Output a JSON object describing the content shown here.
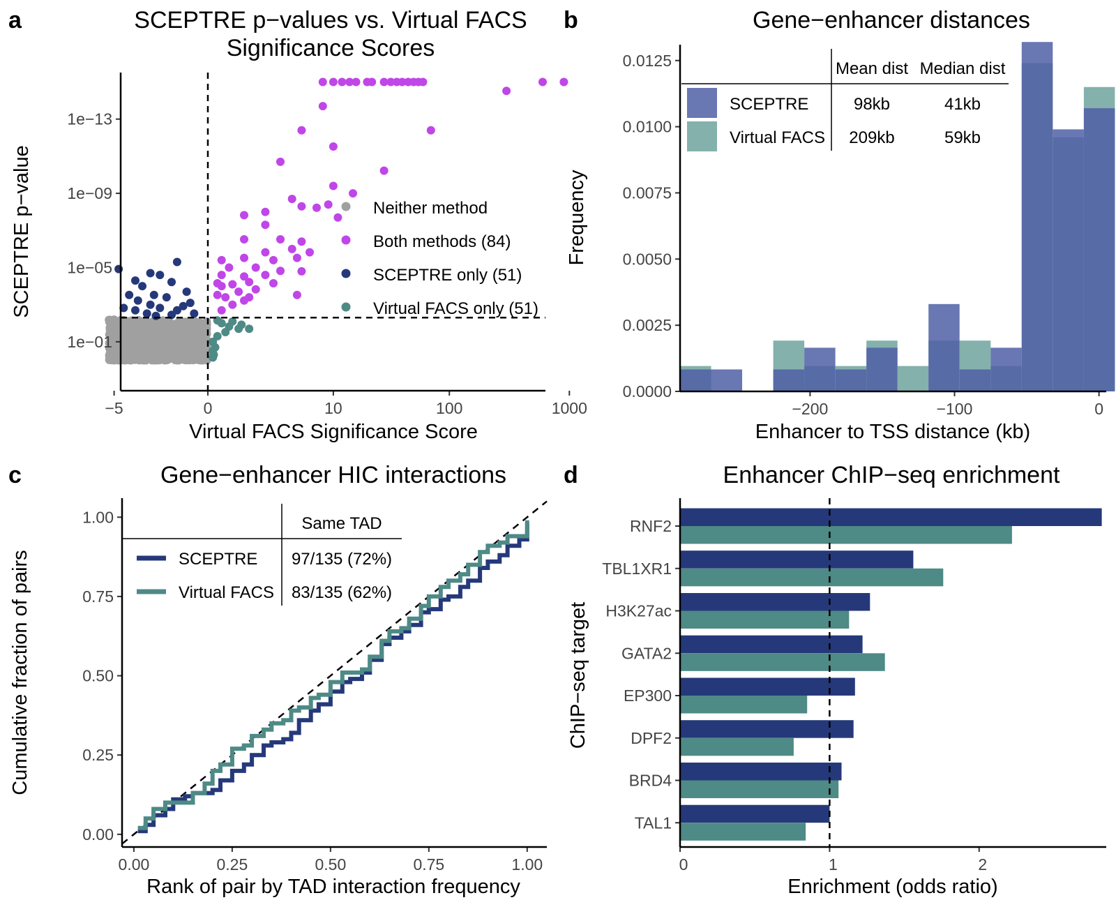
{
  "chart_data": [
    {
      "panel": "a",
      "type": "scatter",
      "title_lines": [
        "SCEPTRE p−values vs. Virtual FACS",
        "Significance Scores"
      ],
      "xlabel": "Virtual FACS Significance Score",
      "ylabel": "SCEPTRE p−value",
      "x_scale": "pseudo-log10 (signed)",
      "y_scale": "-log10",
      "x_ticks": [
        -5,
        0,
        10,
        100,
        1000
      ],
      "x_tick_labels": [
        "−5",
        "0",
        "10",
        "100",
        "1000"
      ],
      "y_ticks": [
        1e-13,
        1e-09,
        1e-05,
        0.1
      ],
      "y_tick_labels": [
        "1e−13",
        "1e−09",
        "1e−05",
        "1e−01"
      ],
      "threshold_x": 0,
      "threshold_p": 0.005,
      "legend": [
        {
          "label": "Neither method",
          "color": "#a0a0a0"
        },
        {
          "label": "Both methods (84)",
          "color": "#c046e8"
        },
        {
          "label": "SCEPTRE only (51)",
          "color": "#25397a"
        },
        {
          "label": "Virtual FACS only (51)",
          "color": "#4e8a86"
        }
      ],
      "series": [
        {
          "name": "Both methods (84)",
          "color": "#c046e8",
          "points": [
            [
              8,
              1e-15
            ],
            [
              10,
              1e-15
            ],
            [
              12,
              1e-15
            ],
            [
              14,
              1e-15
            ],
            [
              16,
              1e-15
            ],
            [
              20,
              1e-15
            ],
            [
              22,
              1e-15
            ],
            [
              28,
              1e-15
            ],
            [
              32,
              1e-15
            ],
            [
              36,
              1e-15
            ],
            [
              40,
              1e-15
            ],
            [
              45,
              1e-15
            ],
            [
              50,
              1e-15
            ],
            [
              55,
              1e-15
            ],
            [
              60,
              1e-15
            ],
            [
              300,
              3e-15
            ],
            [
              600,
              1e-15
            ],
            [
              900,
              1e-15
            ],
            [
              8,
              2e-14
            ],
            [
              5,
              4e-13
            ],
            [
              70,
              4e-13
            ],
            [
              10,
              3e-12
            ],
            [
              3,
              2e-11
            ],
            [
              28,
              6e-11
            ],
            [
              10,
              4e-10
            ],
            [
              15,
              1e-09
            ],
            [
              4,
              2e-09
            ],
            [
              9,
              4e-09
            ],
            [
              2,
              1e-08
            ],
            [
              5,
              5e-09
            ],
            [
              7,
              6e-09
            ],
            [
              11,
              2e-08
            ],
            [
              1,
              1.5e-08
            ],
            [
              2,
              5e-08
            ],
            [
              1,
              3e-07
            ],
            [
              3,
              3e-07
            ],
            [
              5,
              4e-07
            ],
            [
              2,
              1.5e-06
            ],
            [
              4,
              1e-06
            ],
            [
              6,
              1.5e-06
            ],
            [
              0.3,
              4e-06
            ],
            [
              1,
              3e-06
            ],
            [
              2.5,
              4e-06
            ],
            [
              4.5,
              3e-06
            ],
            [
              0.5,
              1e-05
            ],
            [
              1.5,
              1e-05
            ],
            [
              3,
              1.5e-05
            ],
            [
              5,
              1.6e-05
            ],
            [
              0.3,
              2.5e-05
            ],
            [
              1,
              3e-05
            ],
            [
              2,
              2.5e-05
            ],
            [
              0.2,
              7e-05
            ],
            [
              0.6,
              8e-05
            ],
            [
              1.2,
              6e-05
            ],
            [
              2.5,
              7e-05
            ],
            [
              0.3,
              0.0001
            ],
            [
              0.8,
              0.0002
            ],
            [
              1.5,
              0.00015
            ],
            [
              0.4,
              0.0004
            ],
            [
              1,
              0.0006
            ],
            [
              0.2,
              0.0003
            ],
            [
              0.6,
              0.001
            ],
            [
              0.3,
              0.002
            ],
            [
              1.2,
              0.0004
            ],
            [
              4.5,
              0.0003
            ]
          ]
        },
        {
          "name": "SCEPTRE only (51)",
          "color": "#25397a",
          "points": [
            [
              -0.8,
              5e-06
            ],
            [
              -4.5,
              1.2e-05
            ],
            [
              -2,
              2e-05
            ],
            [
              -1.5,
              2.5e-05
            ],
            [
              -3,
              5e-05
            ],
            [
              -1,
              6e-05
            ],
            [
              -2.5,
              0.0001
            ],
            [
              -0.5,
              0.0002
            ],
            [
              -1.8,
              0.0003
            ],
            [
              -3.5,
              0.0003
            ],
            [
              -1.2,
              0.0004
            ],
            [
              -2.8,
              0.0006
            ],
            [
              -0.4,
              0.0008
            ],
            [
              -2,
              0.001
            ],
            [
              -1.5,
              0.0015
            ],
            [
              -3,
              0.002
            ],
            [
              -0.8,
              0.002
            ],
            [
              -2.2,
              0.003
            ],
            [
              -1,
              0.0035
            ],
            [
              -0.3,
              0.003
            ],
            [
              -1.7,
              0.004
            ],
            [
              -0.6,
              0.0012
            ],
            [
              -4,
              0.0015
            ]
          ]
        },
        {
          "name": "Virtual FACS only (51)",
          "color": "#4e8a86",
          "points": [
            [
              0.2,
              0.007
            ],
            [
              0.3,
              0.01
            ],
            [
              0.5,
              0.015
            ],
            [
              0.8,
              0.02
            ],
            [
              1.2,
              0.02
            ],
            [
              0.4,
              0.03
            ],
            [
              0.2,
              0.05
            ],
            [
              0.1,
              0.1
            ],
            [
              0.15,
              0.2
            ],
            [
              0.1,
              0.3
            ],
            [
              0.12,
              0.5
            ],
            [
              0.1,
              0.7
            ],
            [
              0.9,
              0.012
            ],
            [
              0.6,
              0.008
            ]
          ]
        },
        {
          "name": "Neither method",
          "color": "#a0a0a0",
          "points": "dense cloud: x from -6 to 0, p from 0.006 to 1"
        }
      ]
    },
    {
      "panel": "b",
      "type": "bar",
      "title": "Gene−enhancer distances",
      "xlabel": "Enhancer to TSS distance (kb)",
      "ylabel": "Frequency",
      "xlim": [
        -290,
        5
      ],
      "ylim": [
        0,
        0.0131
      ],
      "x_ticks": [
        -200,
        -100,
        0
      ],
      "x_tick_labels": [
        "−200",
        "−100",
        "0"
      ],
      "y_ticks": [
        0,
        0.0025,
        0.005,
        0.0075,
        0.01,
        0.0125
      ],
      "y_tick_labels": [
        "0.0000",
        "0.0025",
        "0.0050",
        "0.0075",
        "0.0100",
        "0.0125"
      ],
      "bin_width": 21.5,
      "bin_starts": [
        -290,
        -268.5,
        -247,
        -225.5,
        -204,
        -182.5,
        -161,
        -139.5,
        -118,
        -96.5,
        -75,
        -53.5,
        -32,
        -10.5
      ],
      "series": [
        {
          "name": "SCEPTRE",
          "color": "#4f5fa6",
          "values": [
            0.00083,
            0.00083,
            0,
            0.00083,
            0.00165,
            0.00083,
            0.00165,
            0,
            0.0033,
            0.00083,
            0.00165,
            0.0132,
            0.0099,
            0.0107
          ]
        },
        {
          "name": "Virtual FACS",
          "color": "#6fa39e",
          "values": [
            0.00096,
            0,
            0,
            0.00192,
            0.00096,
            0.00096,
            0.00192,
            0.00096,
            0.00192,
            0.00192,
            0.00096,
            0.0124,
            0.0096,
            0.0115
          ]
        }
      ],
      "table": {
        "col_headers": [
          "Mean dist",
          "Median dist"
        ],
        "rows": [
          {
            "name": "SCEPTRE",
            "color": "#4f5fa6",
            "mean": "98kb",
            "median": "41kb"
          },
          {
            "name": "Virtual FACS",
            "color": "#6fa39e",
            "mean": "209kb",
            "median": "59kb"
          }
        ]
      }
    },
    {
      "panel": "c",
      "type": "line",
      "title": "Gene−enhancer HIC interactions",
      "xlabel": "Rank of pair by TAD interaction frequency",
      "ylabel": "Cumulative fraction of pairs",
      "xlim": [
        -0.03,
        1.05
      ],
      "ylim": [
        -0.04,
        1.06
      ],
      "x_ticks": [
        0,
        0.25,
        0.5,
        0.75,
        1
      ],
      "x_tick_labels": [
        "0.00",
        "0.25",
        "0.50",
        "0.75",
        "1.00"
      ],
      "y_ticks": [
        0,
        0.25,
        0.5,
        0.75,
        1
      ],
      "y_tick_labels": [
        "0.00",
        "0.25",
        "0.50",
        "0.75",
        "1.00"
      ],
      "reference_line": "y = x (dashed)",
      "series": [
        {
          "name": "SCEPTRE",
          "color": "#25397a",
          "x": [
            0.01,
            0.03,
            0.05,
            0.08,
            0.1,
            0.13,
            0.15,
            0.18,
            0.2,
            0.22,
            0.25,
            0.28,
            0.3,
            0.33,
            0.35,
            0.38,
            0.4,
            0.42,
            0.45,
            0.47,
            0.5,
            0.53,
            0.55,
            0.58,
            0.6,
            0.63,
            0.65,
            0.68,
            0.7,
            0.73,
            0.75,
            0.78,
            0.8,
            0.83,
            0.85,
            0.88,
            0.9,
            0.93,
            0.95,
            0.98,
            1.0
          ],
          "y": [
            0.01,
            0.03,
            0.06,
            0.08,
            0.11,
            0.12,
            0.13,
            0.13,
            0.14,
            0.17,
            0.2,
            0.22,
            0.25,
            0.28,
            0.29,
            0.3,
            0.32,
            0.36,
            0.39,
            0.41,
            0.45,
            0.48,
            0.49,
            0.51,
            0.55,
            0.6,
            0.62,
            0.64,
            0.66,
            0.7,
            0.71,
            0.74,
            0.75,
            0.78,
            0.8,
            0.84,
            0.86,
            0.88,
            0.91,
            0.93,
            0.98
          ]
        },
        {
          "name": "Virtual FACS",
          "color": "#4e8a86",
          "x": [
            0.01,
            0.03,
            0.05,
            0.08,
            0.1,
            0.13,
            0.15,
            0.18,
            0.2,
            0.22,
            0.25,
            0.28,
            0.3,
            0.33,
            0.35,
            0.38,
            0.4,
            0.42,
            0.45,
            0.47,
            0.5,
            0.53,
            0.55,
            0.58,
            0.6,
            0.63,
            0.65,
            0.68,
            0.7,
            0.73,
            0.75,
            0.78,
            0.8,
            0.83,
            0.85,
            0.88,
            0.9,
            0.93,
            0.95,
            0.98,
            1.0
          ],
          "y": [
            0.02,
            0.05,
            0.08,
            0.1,
            0.1,
            0.1,
            0.13,
            0.16,
            0.2,
            0.22,
            0.27,
            0.28,
            0.31,
            0.33,
            0.35,
            0.36,
            0.39,
            0.4,
            0.43,
            0.44,
            0.48,
            0.51,
            0.51,
            0.52,
            0.56,
            0.61,
            0.64,
            0.65,
            0.68,
            0.72,
            0.75,
            0.78,
            0.8,
            0.82,
            0.85,
            0.89,
            0.91,
            0.92,
            0.94,
            0.94,
            0.99
          ]
        }
      ],
      "table": {
        "col_header": "Same TAD",
        "rows": [
          {
            "name": "SCEPTRE",
            "color": "#25397a",
            "value": "97/135 (72%)"
          },
          {
            "name": "Virtual FACS",
            "color": "#4e8a86",
            "value": "83/135 (62%)"
          }
        ]
      }
    },
    {
      "panel": "d",
      "type": "bar",
      "orientation": "horizontal",
      "title": "Enhancer ChIP−seq enrichment",
      "xlabel": "Enrichment (odds ratio)",
      "ylabel": "ChIP−seq target",
      "xlim": [
        0,
        2.85
      ],
      "x_ticks": [
        0,
        1,
        2
      ],
      "x_tick_labels": [
        "0",
        "1",
        "2"
      ],
      "reference_x": 1,
      "categories": [
        "RNF2",
        "TBL1XR1",
        "H3K27ac",
        "GATA2",
        "EP300",
        "DPF2",
        "BRD4",
        "TAL1"
      ],
      "series": [
        {
          "name": "SCEPTRE",
          "color": "#25397a",
          "values": [
            2.82,
            1.56,
            1.27,
            1.22,
            1.17,
            1.16,
            1.08,
            1.0
          ]
        },
        {
          "name": "Virtual FACS",
          "color": "#4e8a86",
          "values": [
            2.22,
            1.76,
            1.13,
            1.37,
            0.85,
            0.76,
            1.06,
            0.84
          ]
        }
      ]
    }
  ],
  "panel_labels": [
    "a",
    "b",
    "c",
    "d"
  ]
}
